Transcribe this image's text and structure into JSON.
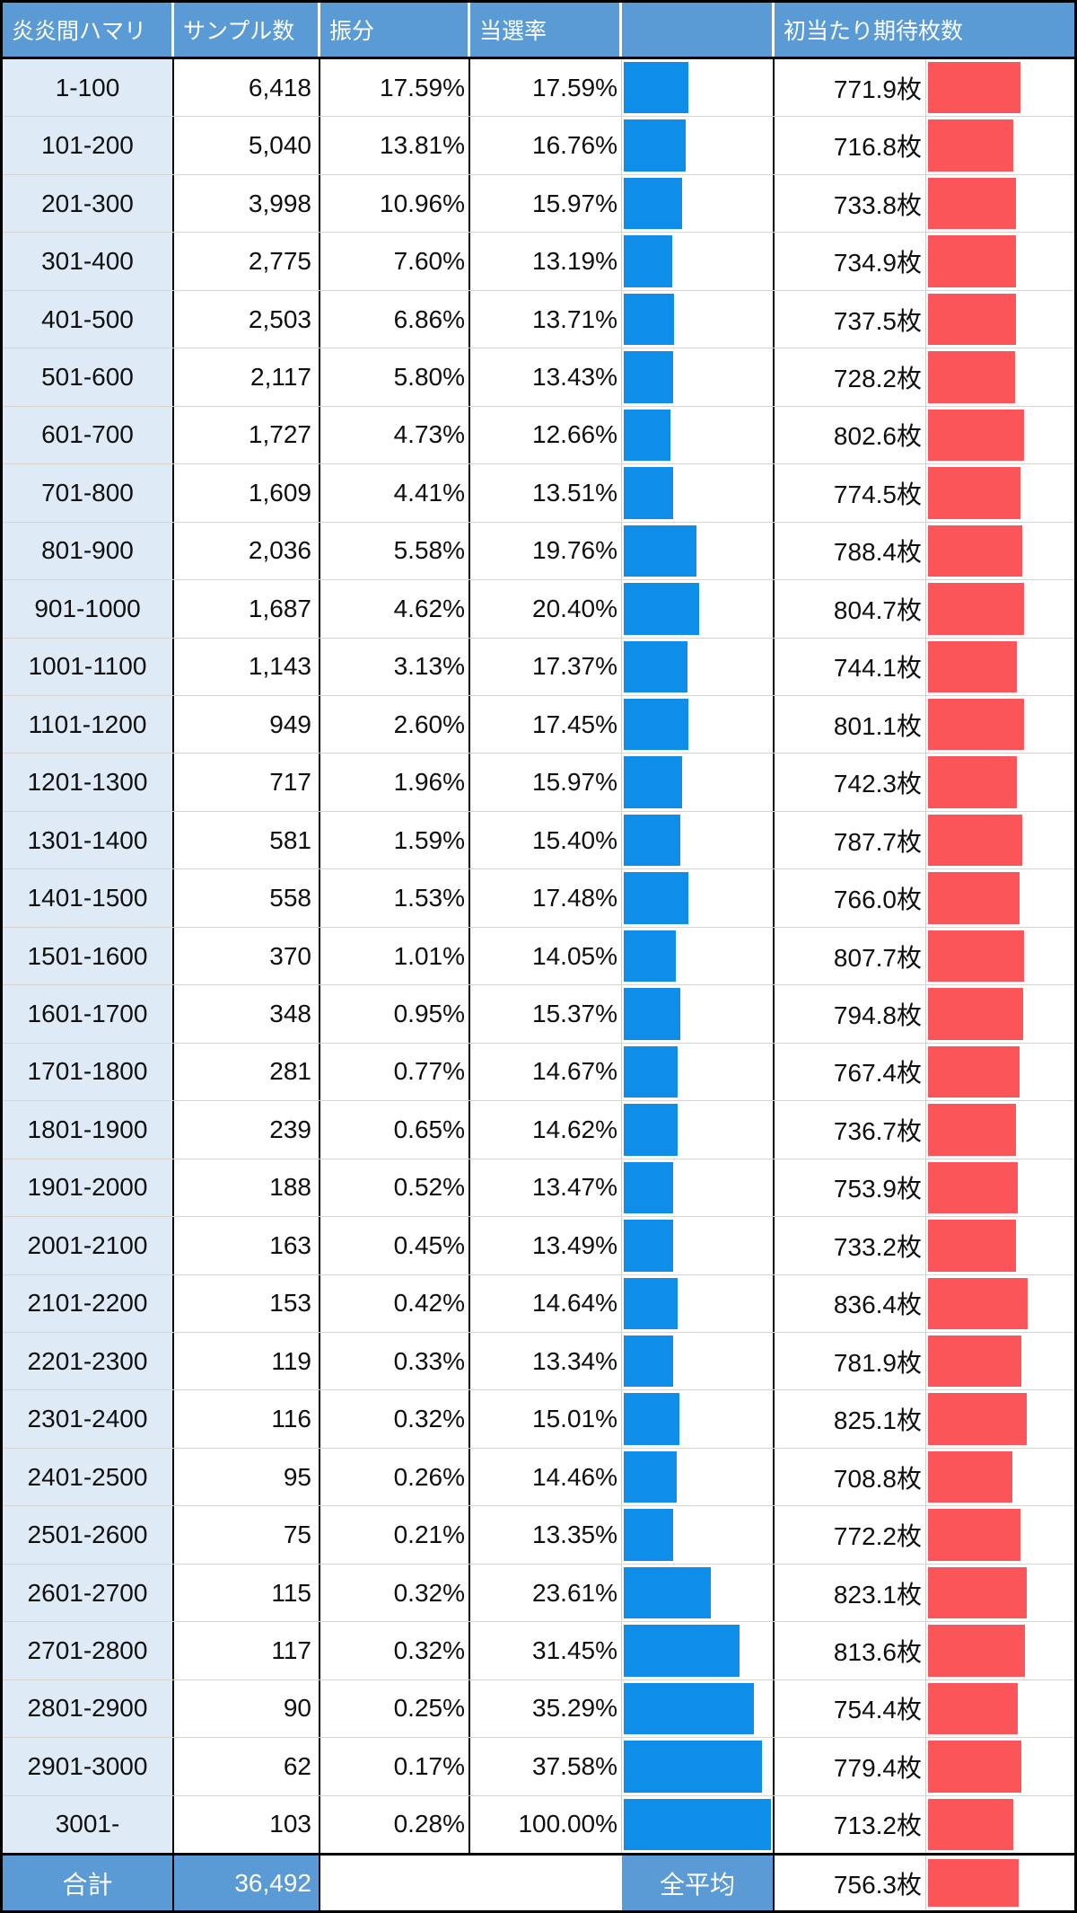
{
  "header": {
    "hamari": "炎炎間ハマリ",
    "samples": "サンプル数",
    "distribution": "振分",
    "win_rate": "当選率",
    "bar_spacer": "",
    "expected_payout": "初当たり期待枚数"
  },
  "footer": {
    "total_label": "合計",
    "total_samples": "36,492",
    "average_label": "全平均",
    "average_payout": "756.3枚",
    "average_payout_value": 756.3
  },
  "colors": {
    "header_blue": "#5B9BD5",
    "row_label_blue": "#DEEAF6",
    "win_rate_bar_blue": "#0E8DE9",
    "payout_bar_red": "#FB5459"
  },
  "bars": {
    "win_rate_axis_max": 40,
    "payout_axis_max": 1210
  },
  "rows": [
    {
      "range": "1-100",
      "samples": "6,418",
      "distribution": "17.59%",
      "win_rate": "17.59%",
      "win_rate_value": 17.59,
      "payout": "771.9枚",
      "payout_value": 771.9
    },
    {
      "range": "101-200",
      "samples": "5,040",
      "distribution": "13.81%",
      "win_rate": "16.76%",
      "win_rate_value": 16.76,
      "payout": "716.8枚",
      "payout_value": 716.8
    },
    {
      "range": "201-300",
      "samples": "3,998",
      "distribution": "10.96%",
      "win_rate": "15.97%",
      "win_rate_value": 15.97,
      "payout": "733.8枚",
      "payout_value": 733.8
    },
    {
      "range": "301-400",
      "samples": "2,775",
      "distribution": "7.60%",
      "win_rate": "13.19%",
      "win_rate_value": 13.19,
      "payout": "734.9枚",
      "payout_value": 734.9
    },
    {
      "range": "401-500",
      "samples": "2,503",
      "distribution": "6.86%",
      "win_rate": "13.71%",
      "win_rate_value": 13.71,
      "payout": "737.5枚",
      "payout_value": 737.5
    },
    {
      "range": "501-600",
      "samples": "2,117",
      "distribution": "5.80%",
      "win_rate": "13.43%",
      "win_rate_value": 13.43,
      "payout": "728.2枚",
      "payout_value": 728.2
    },
    {
      "range": "601-700",
      "samples": "1,727",
      "distribution": "4.73%",
      "win_rate": "12.66%",
      "win_rate_value": 12.66,
      "payout": "802.6枚",
      "payout_value": 802.6
    },
    {
      "range": "701-800",
      "samples": "1,609",
      "distribution": "4.41%",
      "win_rate": "13.51%",
      "win_rate_value": 13.51,
      "payout": "774.5枚",
      "payout_value": 774.5
    },
    {
      "range": "801-900",
      "samples": "2,036",
      "distribution": "5.58%",
      "win_rate": "19.76%",
      "win_rate_value": 19.76,
      "payout": "788.4枚",
      "payout_value": 788.4
    },
    {
      "range": "901-1000",
      "samples": "1,687",
      "distribution": "4.62%",
      "win_rate": "20.40%",
      "win_rate_value": 20.4,
      "payout": "804.7枚",
      "payout_value": 804.7
    },
    {
      "range": "1001-1100",
      "samples": "1,143",
      "distribution": "3.13%",
      "win_rate": "17.37%",
      "win_rate_value": 17.37,
      "payout": "744.1枚",
      "payout_value": 744.1
    },
    {
      "range": "1101-1200",
      "samples": "949",
      "distribution": "2.60%",
      "win_rate": "17.45%",
      "win_rate_value": 17.45,
      "payout": "801.1枚",
      "payout_value": 801.1
    },
    {
      "range": "1201-1300",
      "samples": "717",
      "distribution": "1.96%",
      "win_rate": "15.97%",
      "win_rate_value": 15.97,
      "payout": "742.3枚",
      "payout_value": 742.3
    },
    {
      "range": "1301-1400",
      "samples": "581",
      "distribution": "1.59%",
      "win_rate": "15.40%",
      "win_rate_value": 15.4,
      "payout": "787.7枚",
      "payout_value": 787.7
    },
    {
      "range": "1401-1500",
      "samples": "558",
      "distribution": "1.53%",
      "win_rate": "17.48%",
      "win_rate_value": 17.48,
      "payout": "766.0枚",
      "payout_value": 766.0
    },
    {
      "range": "1501-1600",
      "samples": "370",
      "distribution": "1.01%",
      "win_rate": "14.05%",
      "win_rate_value": 14.05,
      "payout": "807.7枚",
      "payout_value": 807.7
    },
    {
      "range": "1601-1700",
      "samples": "348",
      "distribution": "0.95%",
      "win_rate": "15.37%",
      "win_rate_value": 15.37,
      "payout": "794.8枚",
      "payout_value": 794.8
    },
    {
      "range": "1701-1800",
      "samples": "281",
      "distribution": "0.77%",
      "win_rate": "14.67%",
      "win_rate_value": 14.67,
      "payout": "767.4枚",
      "payout_value": 767.4
    },
    {
      "range": "1801-1900",
      "samples": "239",
      "distribution": "0.65%",
      "win_rate": "14.62%",
      "win_rate_value": 14.62,
      "payout": "736.7枚",
      "payout_value": 736.7
    },
    {
      "range": "1901-2000",
      "samples": "188",
      "distribution": "0.52%",
      "win_rate": "13.47%",
      "win_rate_value": 13.47,
      "payout": "753.9枚",
      "payout_value": 753.9
    },
    {
      "range": "2001-2100",
      "samples": "163",
      "distribution": "0.45%",
      "win_rate": "13.49%",
      "win_rate_value": 13.49,
      "payout": "733.2枚",
      "payout_value": 733.2
    },
    {
      "range": "2101-2200",
      "samples": "153",
      "distribution": "0.42%",
      "win_rate": "14.64%",
      "win_rate_value": 14.64,
      "payout": "836.4枚",
      "payout_value": 836.4
    },
    {
      "range": "2201-2300",
      "samples": "119",
      "distribution": "0.33%",
      "win_rate": "13.34%",
      "win_rate_value": 13.34,
      "payout": "781.9枚",
      "payout_value": 781.9
    },
    {
      "range": "2301-2400",
      "samples": "116",
      "distribution": "0.32%",
      "win_rate": "15.01%",
      "win_rate_value": 15.01,
      "payout": "825.1枚",
      "payout_value": 825.1
    },
    {
      "range": "2401-2500",
      "samples": "95",
      "distribution": "0.26%",
      "win_rate": "14.46%",
      "win_rate_value": 14.46,
      "payout": "708.8枚",
      "payout_value": 708.8
    },
    {
      "range": "2501-2600",
      "samples": "75",
      "distribution": "0.21%",
      "win_rate": "13.35%",
      "win_rate_value": 13.35,
      "payout": "772.2枚",
      "payout_value": 772.2
    },
    {
      "range": "2601-2700",
      "samples": "115",
      "distribution": "0.32%",
      "win_rate": "23.61%",
      "win_rate_value": 23.61,
      "payout": "823.1枚",
      "payout_value": 823.1
    },
    {
      "range": "2701-2800",
      "samples": "117",
      "distribution": "0.32%",
      "win_rate": "31.45%",
      "win_rate_value": 31.45,
      "payout": "813.6枚",
      "payout_value": 813.6
    },
    {
      "range": "2801-2900",
      "samples": "90",
      "distribution": "0.25%",
      "win_rate": "35.29%",
      "win_rate_value": 35.29,
      "payout": "754.4枚",
      "payout_value": 754.4
    },
    {
      "range": "2901-3000",
      "samples": "62",
      "distribution": "0.17%",
      "win_rate": "37.58%",
      "win_rate_value": 37.58,
      "payout": "779.4枚",
      "payout_value": 779.4
    },
    {
      "range": "3001-",
      "samples": "103",
      "distribution": "0.28%",
      "win_rate": "100.00%",
      "win_rate_value": 100.0,
      "payout": "713.2枚",
      "payout_value": 713.2
    }
  ],
  "chart_data": {
    "type": "table",
    "columns": [
      "炎炎間ハマリ",
      "サンプル数",
      "振分",
      "当選率",
      "初当たり期待枚数"
    ],
    "categories": [
      "1-100",
      "101-200",
      "201-300",
      "301-400",
      "401-500",
      "501-600",
      "601-700",
      "701-800",
      "801-900",
      "901-1000",
      "1001-1100",
      "1101-1200",
      "1201-1300",
      "1301-1400",
      "1401-1500",
      "1501-1600",
      "1601-1700",
      "1701-1800",
      "1801-1900",
      "1901-2000",
      "2001-2100",
      "2101-2200",
      "2201-2300",
      "2301-2400",
      "2401-2500",
      "2501-2600",
      "2601-2700",
      "2701-2800",
      "2801-2900",
      "2901-3000",
      "3001-"
    ],
    "series": [
      {
        "name": "サンプル数",
        "values": [
          6418,
          5040,
          3998,
          2775,
          2503,
          2117,
          1727,
          1609,
          2036,
          1687,
          1143,
          949,
          717,
          581,
          558,
          370,
          348,
          281,
          239,
          188,
          163,
          153,
          119,
          116,
          95,
          75,
          115,
          117,
          90,
          62,
          103
        ]
      },
      {
        "name": "振分(%)",
        "values": [
          17.59,
          13.81,
          10.96,
          7.6,
          6.86,
          5.8,
          4.73,
          4.41,
          5.58,
          4.62,
          3.13,
          2.6,
          1.96,
          1.59,
          1.53,
          1.01,
          0.95,
          0.77,
          0.65,
          0.52,
          0.45,
          0.42,
          0.33,
          0.32,
          0.26,
          0.21,
          0.32,
          0.32,
          0.25,
          0.17,
          0.28
        ]
      },
      {
        "name": "当選率(%)",
        "values": [
          17.59,
          16.76,
          15.97,
          13.19,
          13.71,
          13.43,
          12.66,
          13.51,
          19.76,
          20.4,
          17.37,
          17.45,
          15.97,
          15.4,
          17.48,
          14.05,
          15.37,
          14.67,
          14.62,
          13.47,
          13.49,
          14.64,
          13.34,
          15.01,
          14.46,
          13.35,
          23.61,
          31.45,
          35.29,
          37.58,
          100.0
        ]
      },
      {
        "name": "初当たり期待枚数(枚)",
        "values": [
          771.9,
          716.8,
          733.8,
          734.9,
          737.5,
          728.2,
          802.6,
          774.5,
          788.4,
          804.7,
          744.1,
          801.1,
          742.3,
          787.7,
          766.0,
          807.7,
          794.8,
          767.4,
          736.7,
          753.9,
          733.2,
          836.4,
          781.9,
          825.1,
          708.8,
          772.2,
          823.1,
          813.6,
          754.4,
          779.4,
          713.2
        ]
      }
    ],
    "totals": {
      "サンプル数": 36492,
      "全平均初当たり期待枚数": 756.3
    },
    "data_bars": {
      "当選率": {
        "type": "bar",
        "color": "#0E8DE9",
        "axis_max": 40,
        "note_axis_cap": 100
      },
      "初当たり期待枚数": {
        "type": "bar",
        "color": "#FB5459",
        "axis_max": 1210
      }
    },
    "legend_position": "none",
    "grid": true
  }
}
